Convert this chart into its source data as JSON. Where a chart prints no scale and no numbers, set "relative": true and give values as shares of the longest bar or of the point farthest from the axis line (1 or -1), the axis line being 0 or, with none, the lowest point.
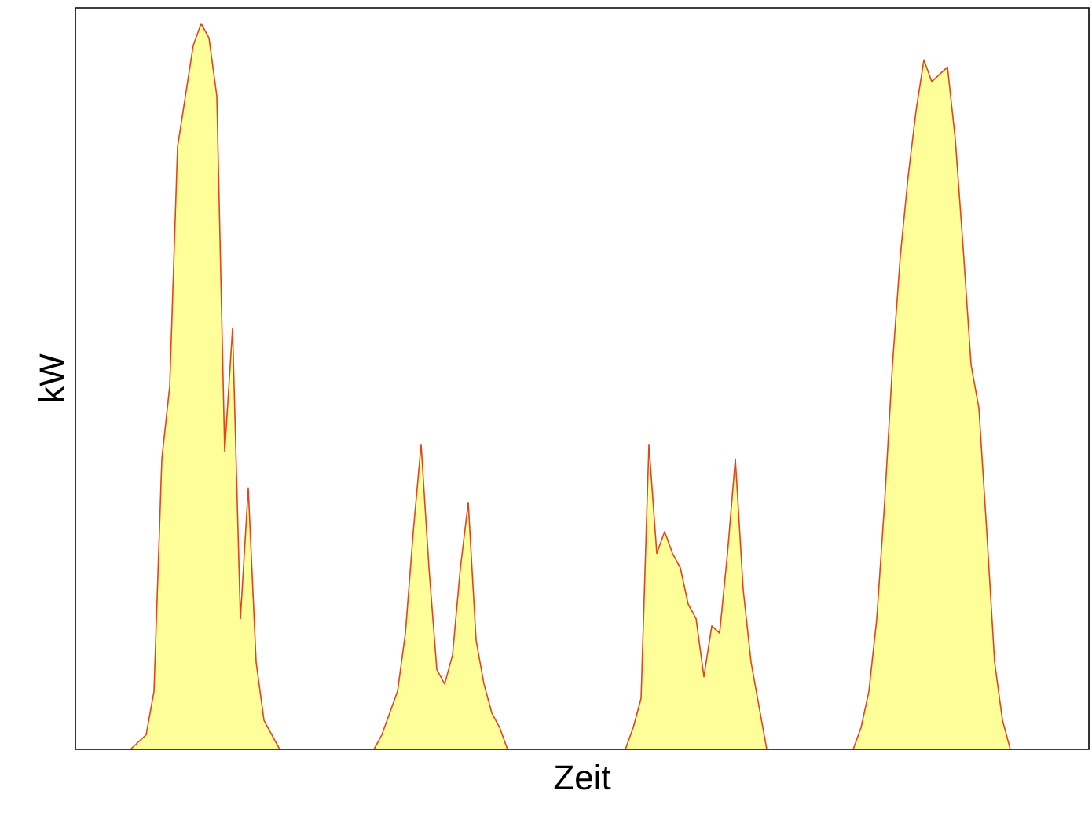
{
  "chart_data": {
    "type": "area",
    "relative": true,
    "xlabel": "Zeit",
    "ylabel": "kW",
    "categories": [
      null,
      null,
      null,
      null,
      null,
      null,
      null,
      null,
      null,
      null,
      null,
      null,
      null,
      null,
      null,
      null,
      null,
      null,
      null,
      null,
      null,
      null,
      null,
      null,
      null,
      null,
      null,
      null,
      null,
      null,
      null,
      null,
      null,
      null,
      null,
      null,
      null,
      null,
      null,
      null,
      null,
      null,
      null,
      null,
      null,
      null,
      null,
      null,
      null,
      null,
      null,
      null,
      null,
      null,
      null,
      null,
      null,
      null,
      null,
      null,
      null,
      null,
      null,
      null,
      null,
      null,
      null,
      null,
      null,
      null,
      null,
      null,
      null,
      null,
      null,
      null,
      null,
      null,
      null,
      null,
      null,
      null,
      null,
      null,
      null,
      null,
      null,
      null,
      null,
      null,
      null,
      null,
      null,
      null,
      null,
      null,
      null,
      null,
      null,
      null,
      null,
      null,
      null,
      null,
      null,
      null,
      null,
      null,
      null,
      null,
      null,
      null,
      null,
      null,
      null,
      null,
      null,
      null,
      null,
      null,
      null,
      null,
      null,
      null,
      null,
      null,
      null,
      null,
      null,
      null
    ],
    "series": [
      {
        "color": "#ffff99",
        "values": [
          0,
          0,
          0,
          0,
          0,
          0,
          0,
          0,
          0.01,
          0.02,
          0.08,
          0.4,
          0.5,
          0.83,
          0.9,
          0.97,
          1.0,
          0.98,
          0.9,
          0.41,
          0.58,
          0.18,
          0.36,
          0.12,
          0.04,
          0.02,
          0,
          0,
          0,
          0,
          0,
          0,
          0,
          0,
          0,
          0,
          0,
          0,
          0,
          0.02,
          0.05,
          0.08,
          0.16,
          0.3,
          0.42,
          0.25,
          0.11,
          0.09,
          0.13,
          0.25,
          0.34,
          0.15,
          0.09,
          0.05,
          0.03,
          0,
          0,
          0,
          0,
          0,
          0,
          0,
          0,
          0,
          0,
          0,
          0,
          0,
          0,
          0,
          0,
          0.03,
          0.07,
          0.42,
          0.27,
          0.3,
          0.27,
          0.25,
          0.2,
          0.18,
          0.1,
          0.17,
          0.16,
          0.27,
          0.4,
          0.22,
          0.12,
          0.06,
          0,
          0,
          0,
          0,
          0,
          0,
          0,
          0,
          0,
          0,
          0,
          0,
          0.03,
          0.08,
          0.18,
          0.34,
          0.53,
          0.68,
          0.79,
          0.88,
          0.95,
          0.92,
          0.93,
          0.94,
          0.84,
          0.69,
          0.53,
          0.47,
          0.3,
          0.12,
          0.04,
          0,
          0,
          0,
          0,
          0,
          0,
          0,
          0,
          0,
          0,
          0
        ]
      }
    ]
  }
}
